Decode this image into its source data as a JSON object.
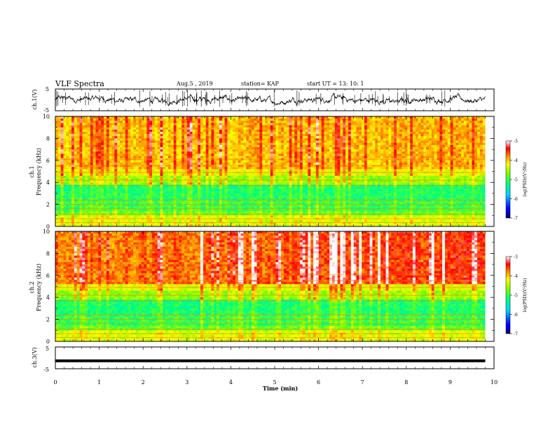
{
  "header": {
    "title": "VLF Spectra",
    "date": "Aug.5 , 2019",
    "station": "station= KAP",
    "start": "start UT = 13: 10: 1"
  },
  "colors": {
    "ch1_line": "#000000",
    "ch3_line": "#000000",
    "colormap": [
      "#00007f",
      "#0000ff",
      "#00c8ff",
      "#00ff96",
      "#64ff00",
      "#ffff00",
      "#ff9600",
      "#ff0000",
      "#ffffff"
    ]
  },
  "chart_data": [
    {
      "type": "line",
      "panel": "ch1",
      "ylabel": "ch.1(V)",
      "yticks": [
        "5",
        "-5"
      ],
      "ylim": [
        -5,
        5
      ],
      "xlim": [
        0,
        10
      ],
      "description_values": {
        "approx_mean": 0.0,
        "approx_range": [
          -2.5,
          2.5
        ],
        "end_time_min": 9.8
      }
    },
    {
      "type": "heatmap",
      "panel": "ch1-spectrogram",
      "ylabel": "ch.1\nFrequency (kHz)",
      "yticks": [
        "0",
        "2",
        "4",
        "6",
        "8",
        "10"
      ],
      "ylim": [
        0,
        10
      ],
      "xlim": [
        0,
        10
      ],
      "colorbar": {
        "label": "log(PSD)(V²/Hz)",
        "ticks": [
          "-3",
          "-4",
          "-5",
          "-6",
          "-7"
        ],
        "range": [
          -7,
          -3
        ]
      }
    },
    {
      "type": "heatmap",
      "panel": "ch2-spectrogram",
      "ylabel": "ch.2\nFrequency (kHz)",
      "yticks": [
        "0",
        "2",
        "4",
        "6",
        "8",
        "10"
      ],
      "ylim": [
        0,
        10
      ],
      "xlim": [
        0,
        10
      ],
      "colorbar": {
        "label": "log(PSD)(V²/Hz)",
        "ticks": [
          "-3",
          "-4",
          "-5",
          "-6",
          "-7"
        ],
        "range": [
          -7,
          -3
        ]
      }
    },
    {
      "type": "line",
      "panel": "ch3",
      "ylabel": "ch.3(V)",
      "yticks": [
        "5",
        "-5"
      ],
      "ylim": [
        -5,
        5
      ],
      "xlim": [
        0,
        10
      ],
      "x": [
        0,
        9.8
      ],
      "y": [
        -1.5,
        -1.5
      ]
    }
  ],
  "xaxis": {
    "label": "Time (min)",
    "ticks": [
      "0",
      "1",
      "2",
      "3",
      "4",
      "5",
      "6",
      "7",
      "8",
      "9",
      "10"
    ]
  }
}
